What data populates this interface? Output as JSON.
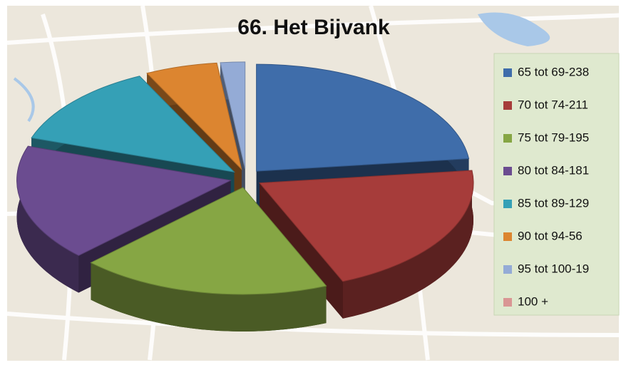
{
  "chart_data": {
    "type": "pie",
    "title": "66. Het Bijvank",
    "categories": [
      "65 tot 69-238",
      "70 tot 74-211",
      "75 tot 79-195",
      "80 tot 84-181",
      "85 tot 89-129",
      "90 tot 94-56",
      "95 tot 100-19",
      "100 +"
    ],
    "values": [
      238,
      211,
      195,
      181,
      129,
      56,
      19,
      null
    ],
    "colors": [
      "#3f6daa",
      "#a63c3a",
      "#86a644",
      "#6b4c90",
      "#35a0b6",
      "#dc8530",
      "#94abd6",
      "#d99694"
    ],
    "legend": "right"
  }
}
